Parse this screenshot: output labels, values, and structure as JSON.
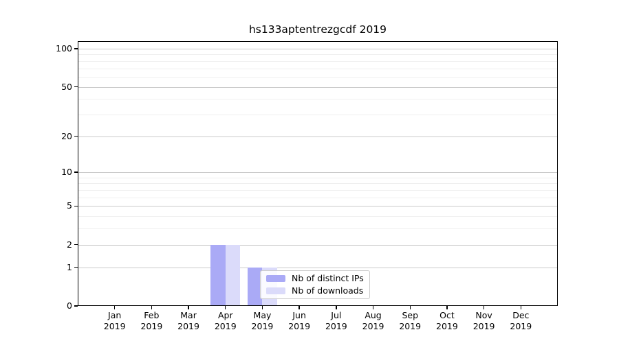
{
  "chart_data": {
    "type": "bar",
    "title": "hs133aptentrezgcdf 2019",
    "categories": [
      "Jan",
      "Feb",
      "Mar",
      "Apr",
      "May",
      "Jun",
      "Jul",
      "Aug",
      "Sep",
      "Oct",
      "Nov",
      "Dec"
    ],
    "category_year": "2019",
    "series": [
      {
        "name": "Nb of distinct IPs",
        "color": "#aaaaf6",
        "values": [
          0,
          0,
          0,
          2,
          1,
          0,
          0,
          0,
          0,
          0,
          0,
          0
        ]
      },
      {
        "name": "Nb of downloads",
        "color": "#dbdbfa",
        "values": [
          0,
          0,
          0,
          2,
          1,
          0,
          0,
          0,
          0,
          0,
          0,
          0
        ]
      }
    ],
    "y_scale": "log10(value+1)",
    "ylim": [
      0,
      100
    ],
    "y_major_ticks": [
      100,
      50,
      20,
      10,
      5,
      2,
      1,
      0
    ],
    "y_minor_ticks": [
      3,
      4,
      6,
      7,
      8,
      9,
      30,
      40,
      60,
      70,
      80,
      90
    ],
    "grid": "horizontal",
    "legend_position": "lower-center"
  },
  "colors": {
    "grid_major": "#c9c9c9",
    "grid_minor": "#efefef",
    "axis": "#000000",
    "text": "#000000",
    "legend_border": "#cccccc"
  }
}
